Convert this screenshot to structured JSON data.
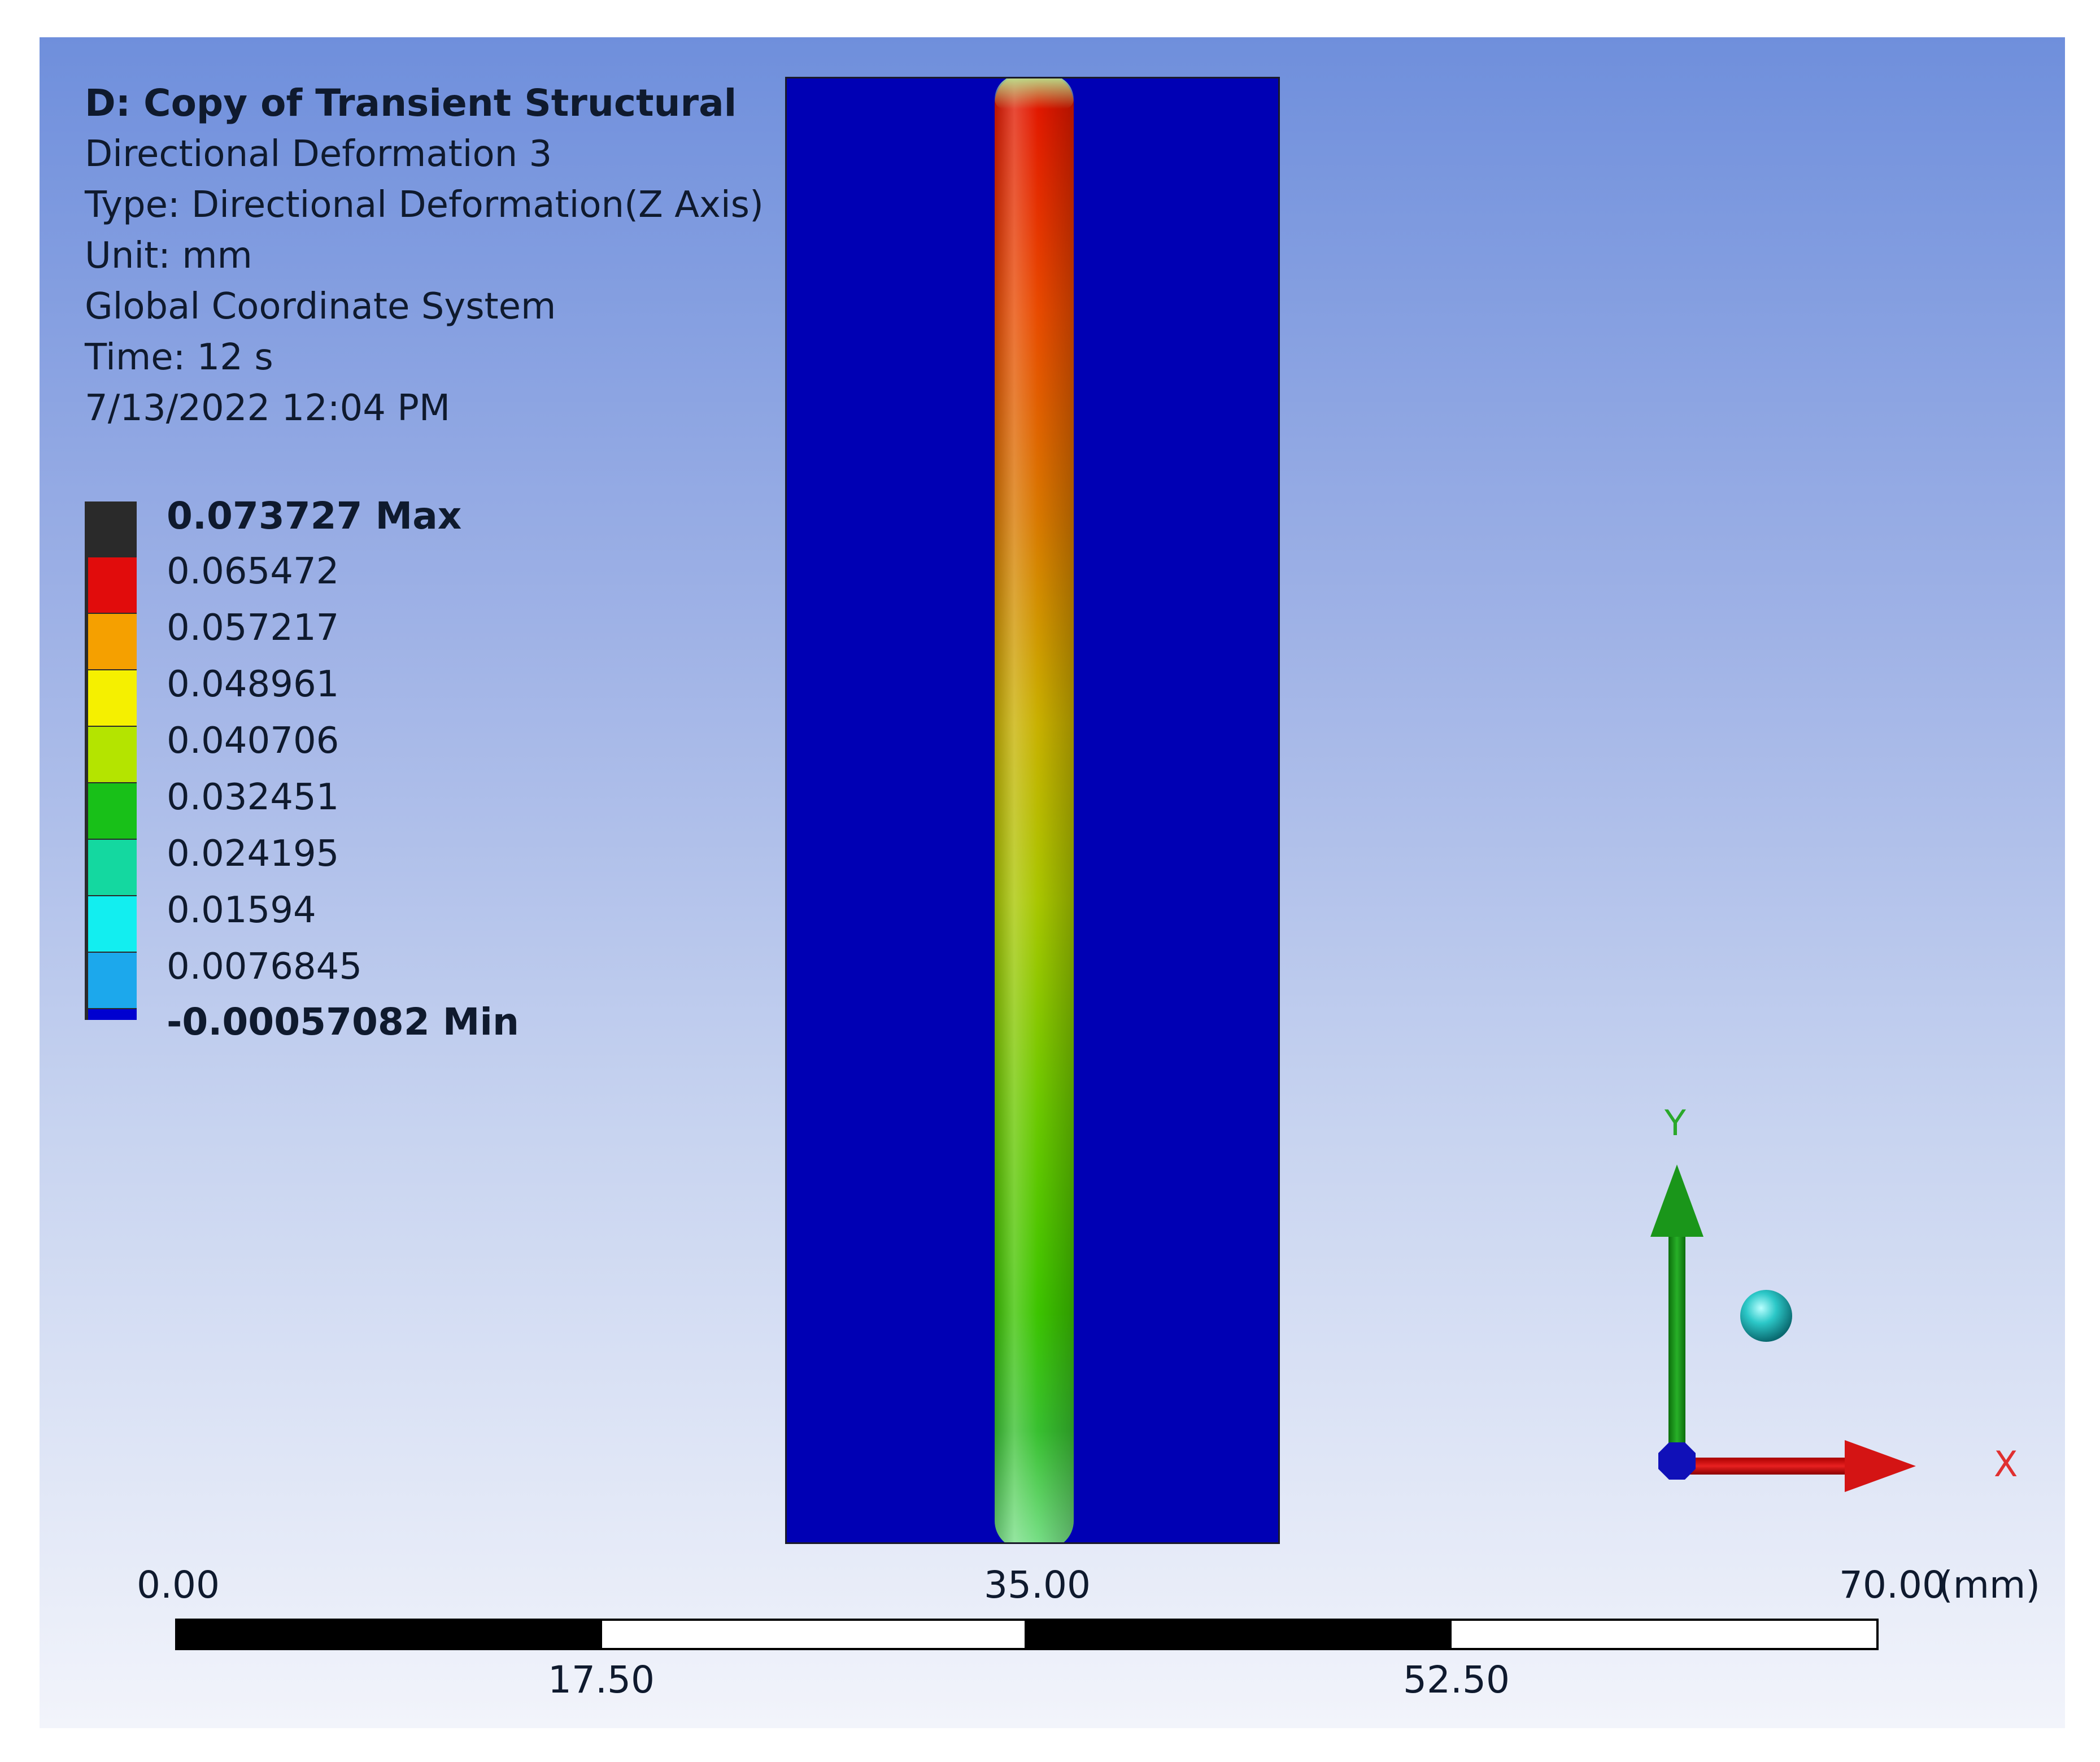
{
  "info": {
    "title": "D: Copy of Transient Structural",
    "result_name": "Directional Deformation 3",
    "type": "Type: Directional Deformation(Z Axis)",
    "unit": "Unit: mm",
    "coordinate_system": "Global Coordinate System",
    "time": "Time: 12 s",
    "timestamp": "7/13/2022 12:04 PM"
  },
  "legend": {
    "max_label": "0.073727 Max",
    "min_label": "-0.00057082 Min",
    "levels": [
      "0.065472",
      "0.057217",
      "0.048961",
      "0.040706",
      "0.032451",
      "0.024195",
      "0.01594",
      "0.0076845"
    ],
    "band_colors": [
      "#e10c0c",
      "#f5a000",
      "#f5f000",
      "#b4e400",
      "#18c018",
      "#14d8a0",
      "#12eef0",
      "#1ca8ec",
      "#0000d0"
    ]
  },
  "scale_bar": {
    "top_labels": [
      "0.00",
      "35.00",
      "70.00"
    ],
    "unit": "(mm)",
    "bottom_labels": [
      "17.50",
      "52.50"
    ]
  },
  "triad": {
    "y_label": "Y",
    "x_label": "X"
  }
}
